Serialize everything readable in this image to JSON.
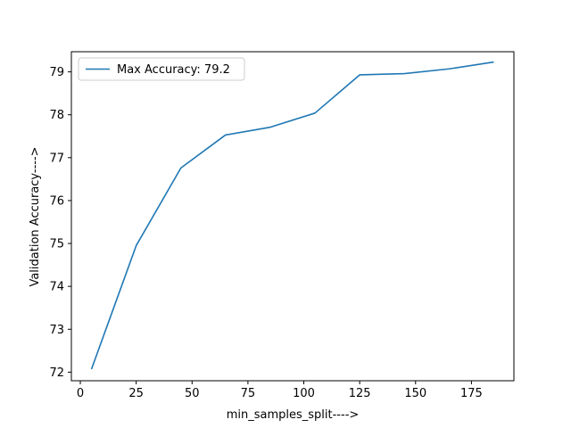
{
  "chart_data": {
    "type": "line",
    "title": "",
    "xlabel": "min_samples_split---->",
    "ylabel": "Validation Accuracy---->",
    "xlim": [
      -4,
      194
    ],
    "ylim": [
      71.8,
      79.47
    ],
    "xticks": [
      0,
      25,
      50,
      75,
      100,
      125,
      150,
      175
    ],
    "yticks": [
      72,
      73,
      74,
      75,
      76,
      77,
      78,
      79
    ],
    "grid": false,
    "legend_position": "upper-left",
    "series": [
      {
        "name": "Max Accuracy: 79.2",
        "color": "#1f77b4",
        "x": [
          5,
          25,
          45,
          65,
          85,
          105,
          125,
          145,
          165,
          185
        ],
        "y": [
          72.07,
          74.95,
          76.76,
          77.53,
          77.71,
          78.04,
          78.93,
          78.96,
          79.07,
          79.23
        ]
      }
    ]
  }
}
